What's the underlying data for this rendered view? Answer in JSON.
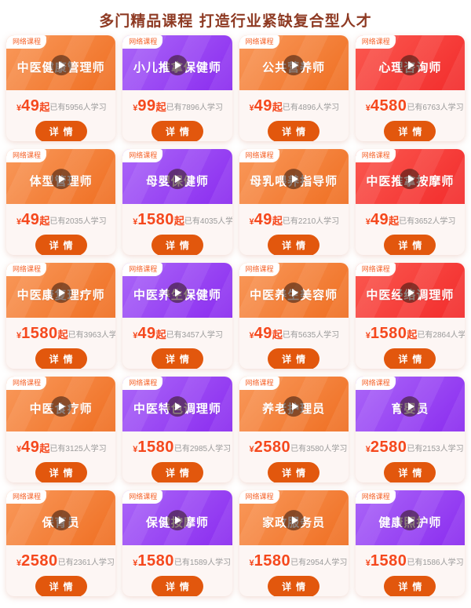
{
  "page": {
    "title": "多门精品课程 打造行业紧缺复合型人才"
  },
  "colors": {
    "title_text": "#8e3a23",
    "price_text": "#f5481d",
    "count_text": "#9b9b9b",
    "button_bg": "#e2570d",
    "badge_text": "#f5632a",
    "card_bottom_bg": "#fdf6f4",
    "page_bg": "#ffffff"
  },
  "themes": {
    "orange": {
      "from": "#f9995b",
      "to": "#ef6e21"
    },
    "purple": {
      "from": "#ab67f8",
      "to": "#8a2bef"
    },
    "red": {
      "from": "#fb5950",
      "to": "#f22b2b"
    }
  },
  "card_common": {
    "badge": "网络课程",
    "button_label": "详情",
    "currency": "¥",
    "count_prefix": "已有",
    "count_suffix": "人学习",
    "play_icon": "play-icon"
  },
  "cards": [
    {
      "title": "中医健康管理师",
      "theme": "orange",
      "price": "49",
      "price_suffix": "起",
      "count": "5956"
    },
    {
      "title": "小儿推拿保健师",
      "theme": "purple",
      "price": "99",
      "price_suffix": "起",
      "count": "7896"
    },
    {
      "title": "公共营养师",
      "theme": "orange",
      "price": "49",
      "price_suffix": "起",
      "count": "4896"
    },
    {
      "title": "心理咨询师",
      "theme": "red",
      "price": "4580",
      "price_suffix": "",
      "count": "6763"
    },
    {
      "title": "体型管理师",
      "theme": "orange",
      "price": "49",
      "price_suffix": "起",
      "count": "2035"
    },
    {
      "title": "母婴保健师",
      "theme": "purple",
      "price": "1580",
      "price_suffix": "起",
      "count": "4035"
    },
    {
      "title": "母乳喂养指导师",
      "theme": "orange",
      "price": "49",
      "price_suffix": "起",
      "count": "2210"
    },
    {
      "title": "中医推拿按摩师",
      "theme": "red",
      "price": "49",
      "price_suffix": "起",
      "count": "3652"
    },
    {
      "title": "中医康复理疗师",
      "theme": "orange",
      "price": "1580",
      "price_suffix": "起",
      "count": "3963"
    },
    {
      "title": "中医养生保健师",
      "theme": "purple",
      "price": "49",
      "price_suffix": "起",
      "count": "3457"
    },
    {
      "title": "中医养生美容师",
      "theme": "orange",
      "price": "49",
      "price_suffix": "起",
      "count": "5635"
    },
    {
      "title": "中医经络调理师",
      "theme": "red",
      "price": "1580",
      "price_suffix": "起",
      "count": "2864"
    },
    {
      "title": "中医食疗师",
      "theme": "orange",
      "price": "49",
      "price_suffix": "起",
      "count": "3125"
    },
    {
      "title": "中医特色调理师",
      "theme": "purple",
      "price": "1580",
      "price_suffix": "",
      "count": "2985"
    },
    {
      "title": "养老护理员",
      "theme": "orange",
      "price": "2580",
      "price_suffix": "",
      "count": "3580"
    },
    {
      "title": "育婴员",
      "theme": "purple",
      "price": "2580",
      "price_suffix": "",
      "count": "2153"
    },
    {
      "title": "保育员",
      "theme": "orange",
      "price": "2580",
      "price_suffix": "",
      "count": "2361"
    },
    {
      "title": "保健按摩师",
      "theme": "purple",
      "price": "1580",
      "price_suffix": "",
      "count": "1589"
    },
    {
      "title": "家政服务员",
      "theme": "orange",
      "price": "1580",
      "price_suffix": "",
      "count": "2954"
    },
    {
      "title": "健康照护师",
      "theme": "purple",
      "price": "1580",
      "price_suffix": "",
      "count": "1586"
    }
  ]
}
